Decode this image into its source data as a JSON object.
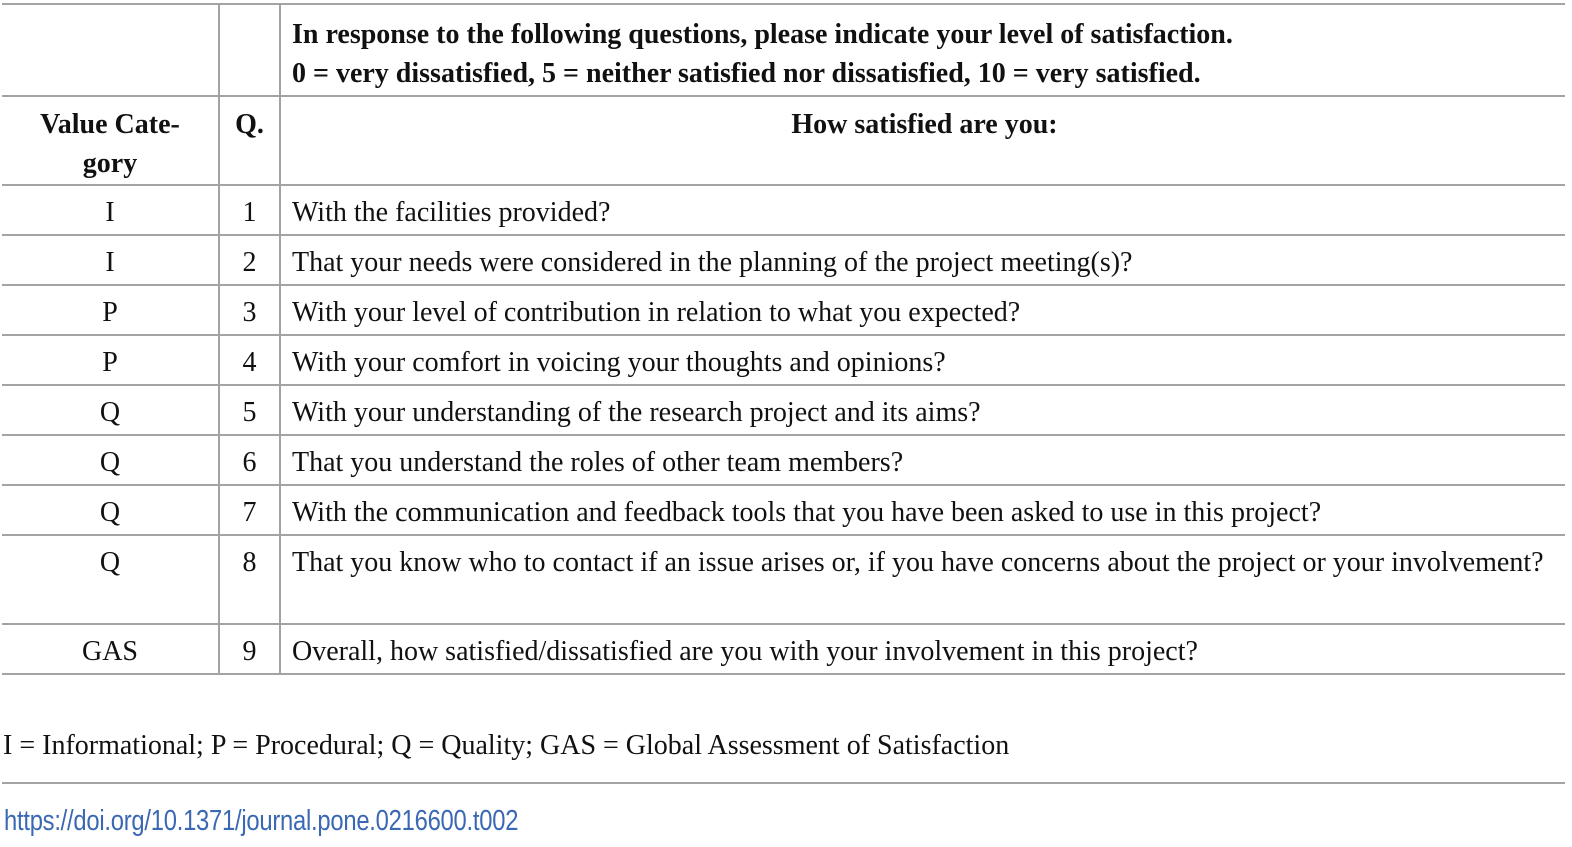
{
  "table": {
    "instruction_line1": "In response to the following questions, please indicate your level of satisfaction.",
    "instruction_line2": "0 = very dissatisfied, 5 = neither satisfied nor dissatisfied, 10 = very satisfied.",
    "headers": {
      "category": "Value Cate-gory",
      "question_no": "Q.",
      "question": "How satisfied are you:"
    },
    "rows": [
      {
        "category": "I",
        "q": "1",
        "text": "With the facilities provided?"
      },
      {
        "category": "I",
        "q": "2",
        "text": "That your needs were considered in the planning of the project meeting(s)?"
      },
      {
        "category": "P",
        "q": "3",
        "text": "With your level of contribution in relation to what you expected?"
      },
      {
        "category": "P",
        "q": "4",
        "text": "With your comfort in voicing your thoughts and opinions?"
      },
      {
        "category": "Q",
        "q": "5",
        "text": "With your understanding of the research project and its aims?"
      },
      {
        "category": "Q",
        "q": "6",
        "text": "That you understand the roles of other team members?"
      },
      {
        "category": "Q",
        "q": "7",
        "text": "With the communication and feedback tools that you have been asked to use in this project?"
      },
      {
        "category": "Q",
        "q": "8",
        "text": "That you know who to contact if an issue arises or, if you have concerns about the project or your involvement?"
      },
      {
        "category": "GAS",
        "q": "9",
        "text": "Overall, how satisfied/dissatisfied are you with your involvement in this project?"
      }
    ]
  },
  "footnote": "I = Informational; P = Procedural; Q = Quality; GAS = Global Assessment of Satisfaction",
  "doi_link": "https://doi.org/10.1371/journal.pone.0216600.t002",
  "colors": {
    "border": "#a3a3a3",
    "link": "#3b68b4"
  }
}
